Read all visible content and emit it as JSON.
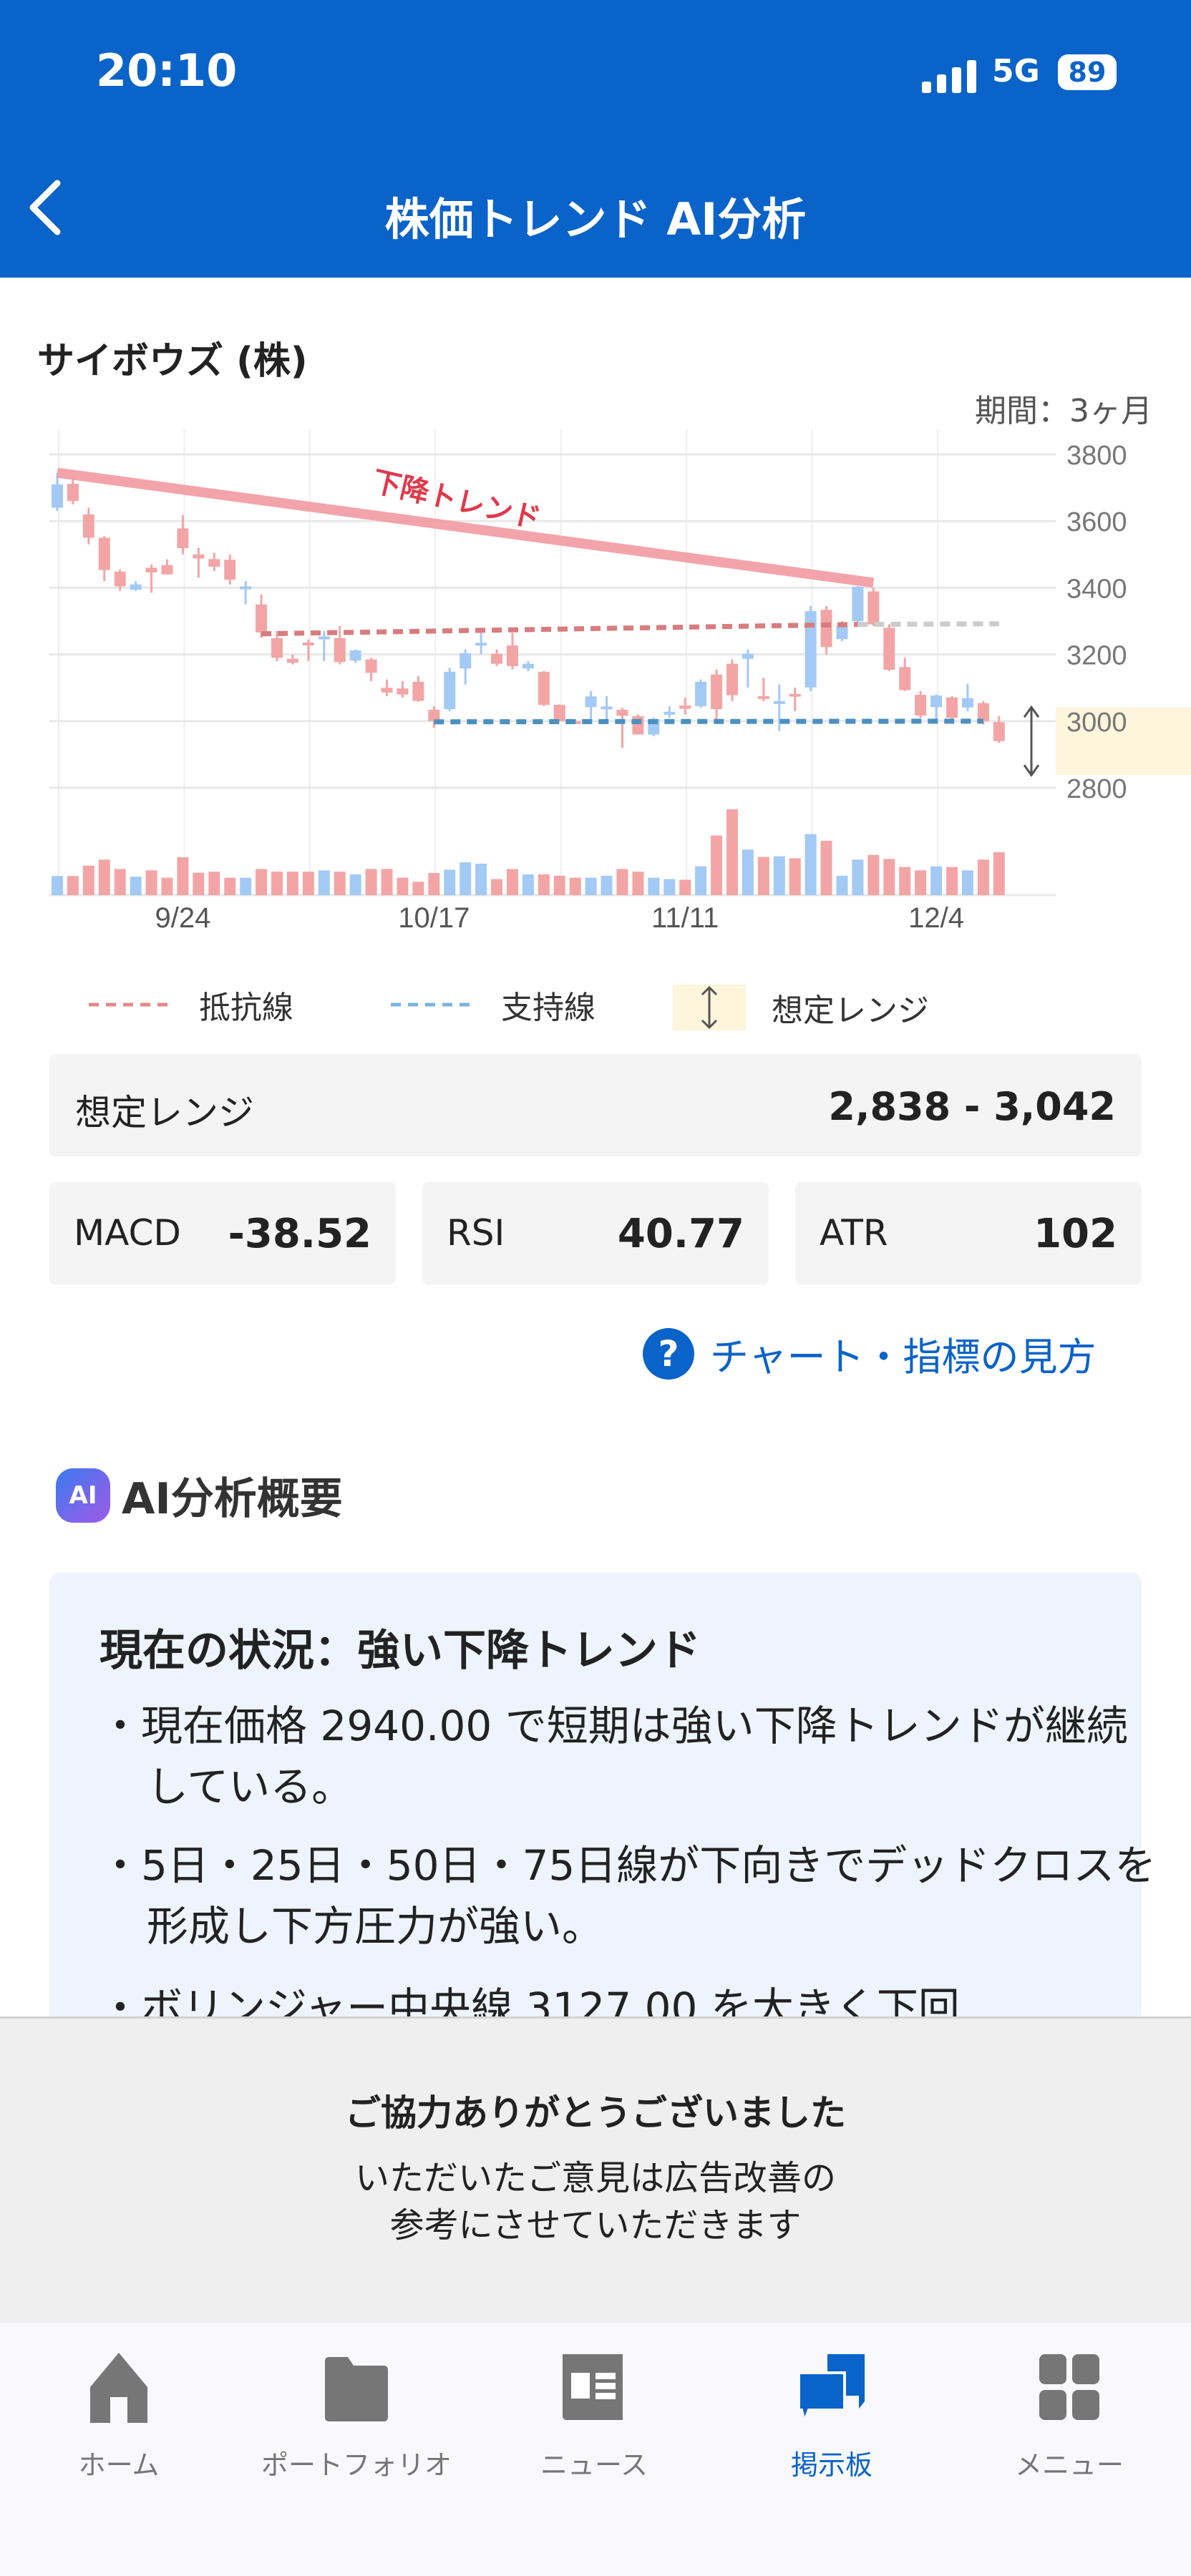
{
  "status_bar": {
    "time": "20:10",
    "network": "5G",
    "battery": "89"
  },
  "header": {
    "title": "株価トレンド AI分析",
    "back_icon": "chevron-left-icon"
  },
  "stock": {
    "name": "サイボウズ (株)",
    "period": "期間：3ヶ月"
  },
  "colors": {
    "brand": "#0a63c9",
    "up": "#a3c9f5",
    "down": "#f3a5a6",
    "trend": "#f29ba2",
    "resistance": "#d87c7e",
    "support": "#4a90c2",
    "range": "#fdf5dc"
  },
  "chart_data": {
    "type": "candlestick",
    "y_ticks": [
      3800,
      3600,
      3400,
      3200,
      3000,
      2800
    ],
    "ylim": [
      2800,
      3800
    ],
    "x_tick_labels": [
      {
        "index": 8,
        "label": "9/24"
      },
      {
        "index": 24,
        "label": "10/17"
      },
      {
        "index": 40,
        "label": "11/11"
      },
      {
        "index": 56,
        "label": "12/4"
      }
    ],
    "grid": true,
    "candles": [
      [
        3640,
        3745,
        3630,
        3710
      ],
      [
        3712,
        3730,
        3650,
        3660
      ],
      [
        3620,
        3640,
        3530,
        3550
      ],
      [
        3550,
        3555,
        3420,
        3453
      ],
      [
        3448,
        3455,
        3390,
        3404
      ],
      [
        3394,
        3420,
        3390,
        3410
      ],
      [
        3460,
        3470,
        3385,
        3446
      ],
      [
        3468,
        3485,
        3440,
        3440
      ],
      [
        3578,
        3618,
        3500,
        3519
      ],
      [
        3500,
        3520,
        3430,
        3488
      ],
      [
        3486,
        3505,
        3450,
        3463
      ],
      [
        3484,
        3500,
        3410,
        3424
      ],
      [
        3400,
        3420,
        3350,
        3404
      ],
      [
        3350,
        3380,
        3250,
        3266
      ],
      [
        3249,
        3270,
        3180,
        3190
      ],
      [
        3187,
        3200,
        3170,
        3175
      ],
      [
        3236,
        3245,
        3180,
        3230
      ],
      [
        3250,
        3270,
        3180,
        3254
      ],
      [
        3249,
        3285,
        3170,
        3177
      ],
      [
        3182,
        3215,
        3175,
        3212
      ],
      [
        3185,
        3190,
        3120,
        3145
      ],
      [
        3100,
        3125,
        3075,
        3086
      ],
      [
        3098,
        3120,
        3070,
        3080
      ],
      [
        3118,
        3135,
        3058,
        3061
      ],
      [
        3034,
        3045,
        2980,
        3000
      ],
      [
        3036,
        3160,
        3030,
        3148
      ],
      [
        3158,
        3215,
        3110,
        3204
      ],
      [
        3230,
        3265,
        3200,
        3235
      ],
      [
        3202,
        3215,
        3165,
        3172
      ],
      [
        3227,
        3265,
        3155,
        3165
      ],
      [
        3158,
        3180,
        3150,
        3172
      ],
      [
        3148,
        3150,
        3045,
        3049
      ],
      [
        3049,
        3050,
        3000,
        3000
      ],
      [
        3000,
        3005,
        2995,
        2998
      ],
      [
        3042,
        3090,
        3000,
        3074
      ],
      [
        3040,
        3075,
        3000,
        3044
      ],
      [
        3034,
        3040,
        2920,
        3016
      ],
      [
        3015,
        3020,
        2960,
        2960
      ],
      [
        2960,
        3010,
        2955,
        3006
      ],
      [
        3022,
        3045,
        3010,
        3028
      ],
      [
        3047,
        3070,
        3020,
        3037
      ],
      [
        3045,
        3125,
        3040,
        3118
      ],
      [
        3140,
        3155,
        3000,
        3036
      ],
      [
        3172,
        3185,
        3060,
        3078
      ],
      [
        3187,
        3215,
        3100,
        3202
      ],
      [
        3075,
        3130,
        3060,
        3068
      ],
      [
        3054,
        3110,
        2970,
        3060
      ],
      [
        3082,
        3100,
        3030,
        3075
      ],
      [
        3101,
        3345,
        3090,
        3330
      ],
      [
        3334,
        3345,
        3200,
        3222
      ],
      [
        3246,
        3300,
        3240,
        3285
      ],
      [
        3300,
        3405,
        3295,
        3403
      ],
      [
        3389,
        3400,
        3285,
        3290
      ],
      [
        3280,
        3290,
        3150,
        3154
      ],
      [
        3162,
        3190,
        3090,
        3093
      ],
      [
        3079,
        3090,
        3010,
        3017
      ],
      [
        3042,
        3080,
        3000,
        3077
      ],
      [
        3071,
        3075,
        3005,
        3010
      ],
      [
        3041,
        3112,
        3030,
        3069
      ],
      [
        3054,
        3060,
        2990,
        3000
      ],
      [
        2997,
        3015,
        2935,
        2940
      ]
    ],
    "volume_relative": [
      57,
      57,
      88,
      106,
      78,
      55,
      74,
      52,
      113,
      67,
      70,
      52,
      52,
      78,
      70,
      70,
      70,
      74,
      70,
      62,
      78,
      78,
      52,
      40,
      66,
      76,
      98,
      94,
      48,
      78,
      62,
      62,
      58,
      52,
      52,
      58,
      78,
      70,
      52,
      48,
      46,
      86,
      178,
      256,
      136,
      114,
      116,
      110,
      182,
      162,
      58,
      106,
      120,
      108,
      84,
      74,
      86,
      84,
      74,
      106,
      128
    ],
    "annotations": {
      "downtrend": {
        "label": "下降トレンド",
        "from": [
          0,
          3745
        ],
        "to": [
          52,
          3415
        ]
      },
      "resistance": {
        "from": [
          13,
          3262
        ],
        "to": [
          51,
          3290
        ],
        "extend_to": [
          60,
          3292
        ]
      },
      "support": {
        "from": [
          24,
          2998
        ],
        "to": [
          59,
          3000
        ]
      },
      "expected_range": [
        2838,
        3042
      ]
    }
  },
  "legend": {
    "resistance": "抵抗線",
    "support": "支持線",
    "range": "想定レンジ"
  },
  "range_box": {
    "label": "想定レンジ",
    "value": "2,838 - 3,042"
  },
  "stats": [
    {
      "label": "MACD",
      "value": "-38.52"
    },
    {
      "label": "RSI",
      "value": "40.77"
    },
    {
      "label": "ATR",
      "value": "102"
    }
  ],
  "help_link": "チャート・指標の見方",
  "ai": {
    "icon_label": "AI",
    "heading": "AI分析概要",
    "card_title": "現在の状況：強い下降トレンド",
    "bullets": [
      "・現在価格 2940.00 で短期は強い下降トレンドが継続している。",
      "・5日・25日・50日・75日線が下向きでデッドクロスを形成し下方圧力が強い。",
      "・ボリンジャー中央線 3127.00 を大きく下回"
    ]
  },
  "overlay": {
    "title": "ご協力ありがとうございました",
    "line1": "いただいたご意見は広告改善の",
    "line2": "参考にさせていただきます"
  },
  "tabs": [
    {
      "label": "ホーム",
      "icon": "home-icon"
    },
    {
      "label": "ポートフォリオ",
      "icon": "folder-icon"
    },
    {
      "label": "ニュース",
      "icon": "newspaper-icon"
    },
    {
      "label": "掲示板",
      "icon": "chat-bubbles-icon",
      "active": true
    },
    {
      "label": "メニュー",
      "icon": "grid-menu-icon"
    }
  ]
}
